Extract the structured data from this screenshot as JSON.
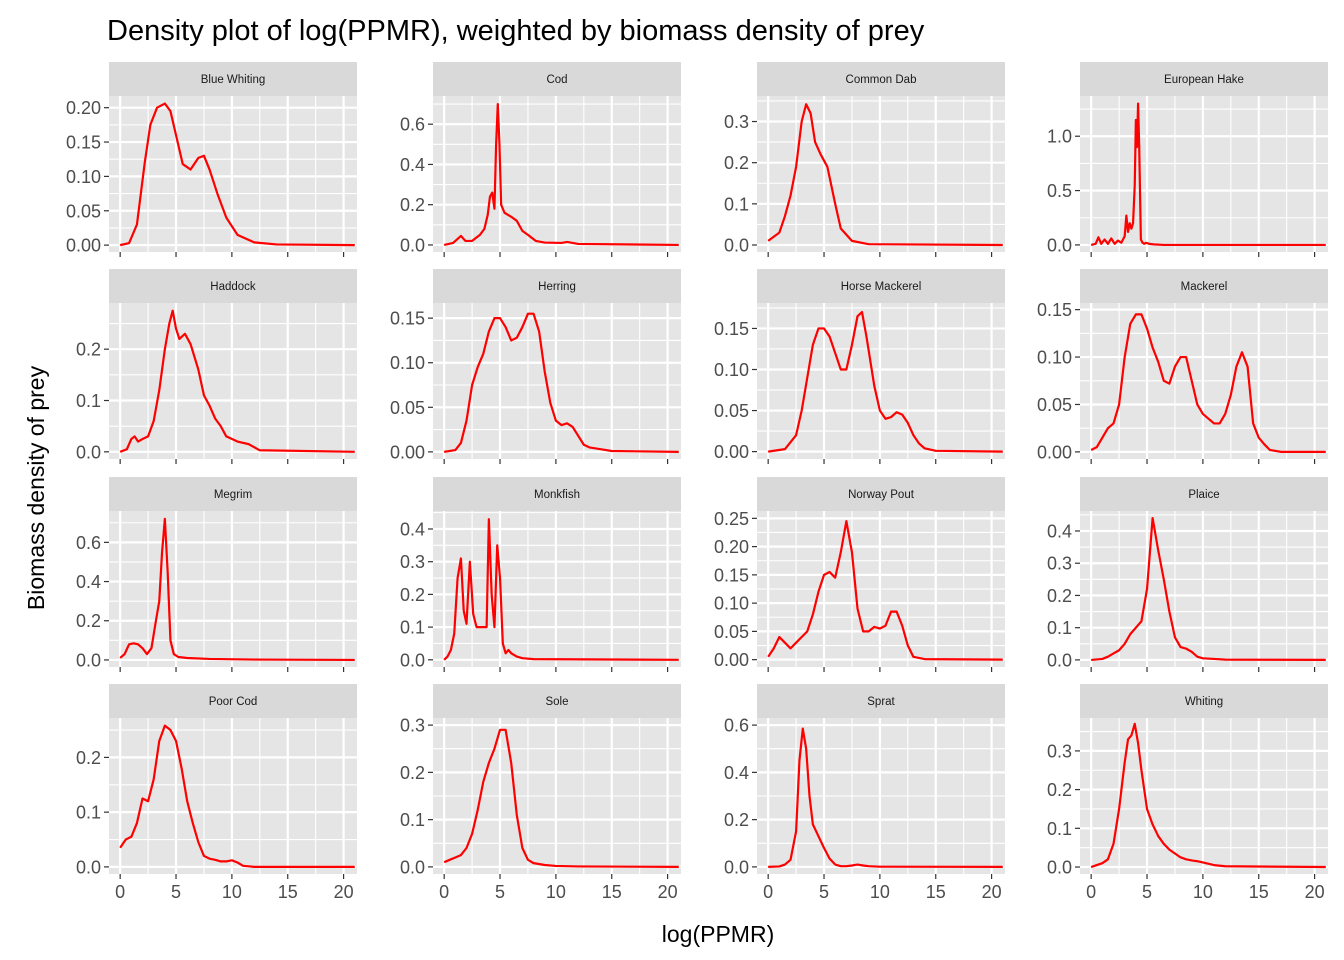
{
  "chart_data": {
    "type": "line",
    "title": "Density plot of log(PPMR), weighted by biomass density of prey",
    "xlabel": "log(PPMR)",
    "ylabel": "Biomass density of prey",
    "xlim": [
      -1,
      21.2
    ],
    "xticks": [
      0,
      5,
      10,
      15,
      20
    ],
    "grid": true,
    "line_color": "#ff0000",
    "panel_bg": "#e5e5e5",
    "strip_bg": "#d9d9d9",
    "panels": [
      {
        "name": "Blue Whiting",
        "ylim": [
          -0.01,
          0.217
        ],
        "yticks": [
          0,
          0.05,
          0.1,
          0.15,
          0.2
        ],
        "yticklabels": [
          "0.00",
          "0.05",
          "0.10",
          "0.15",
          "0.20"
        ],
        "x": [
          0,
          0.8,
          1.5,
          2.2,
          2.7,
          3.3,
          4,
          4.5,
          5,
          5.6,
          6.3,
          7,
          7.5,
          8,
          8.7,
          9.5,
          10.5,
          12,
          14,
          21
        ],
        "y": [
          0,
          0.003,
          0.03,
          0.12,
          0.175,
          0.2,
          0.206,
          0.195,
          0.16,
          0.118,
          0.11,
          0.127,
          0.13,
          0.11,
          0.075,
          0.04,
          0.015,
          0.004,
          0.001,
          0
        ]
      },
      {
        "name": "Cod",
        "ylim": [
          -0.035,
          0.74
        ],
        "yticks": [
          0,
          0.2,
          0.4,
          0.6
        ],
        "yticklabels": [
          "0.0",
          "0.2",
          "0.4",
          "0.6"
        ],
        "x": [
          0,
          0.8,
          1.2,
          1.5,
          1.9,
          2.5,
          3.2,
          3.6,
          3.9,
          4.1,
          4.3,
          4.5,
          4.65,
          4.8,
          4.95,
          5.1,
          5.4,
          6,
          6.5,
          7,
          7.5,
          8.2,
          9,
          10.5,
          11,
          12,
          21
        ],
        "y": [
          0,
          0.01,
          0.03,
          0.045,
          0.02,
          0.02,
          0.05,
          0.08,
          0.15,
          0.24,
          0.26,
          0.18,
          0.5,
          0.7,
          0.5,
          0.2,
          0.16,
          0.14,
          0.12,
          0.07,
          0.05,
          0.02,
          0.012,
          0.01,
          0.015,
          0.005,
          0
        ]
      },
      {
        "name": "Common Dab",
        "ylim": [
          -0.017,
          0.362
        ],
        "yticks": [
          0,
          0.1,
          0.2,
          0.3
        ],
        "yticklabels": [
          "0.0",
          "0.1",
          "0.2",
          "0.3"
        ],
        "x": [
          0,
          0.5,
          1,
          1.5,
          2,
          2.5,
          3,
          3.4,
          3.8,
          4.2,
          4.7,
          5.3,
          6,
          6.5,
          7.5,
          9,
          21
        ],
        "y": [
          0.01,
          0.02,
          0.03,
          0.07,
          0.12,
          0.19,
          0.3,
          0.342,
          0.32,
          0.25,
          0.22,
          0.19,
          0.1,
          0.04,
          0.01,
          0.002,
          0
        ]
      },
      {
        "name": "European Hake",
        "ylim": [
          -0.065,
          1.37
        ],
        "yticks": [
          0,
          0.5,
          1
        ],
        "yticklabels": [
          "0.0",
          "0.5",
          "1.0"
        ],
        "x": [
          0,
          0.4,
          0.65,
          0.9,
          1.2,
          1.5,
          1.8,
          2.1,
          2.4,
          2.7,
          3.0,
          3.15,
          3.3,
          3.45,
          3.6,
          3.75,
          3.9,
          4.0,
          4.1,
          4.2,
          4.3,
          4.45,
          4.6,
          4.75,
          4.9,
          5.2,
          5.6,
          6.5,
          21
        ],
        "y": [
          0,
          0.01,
          0.07,
          0.01,
          0.05,
          0.01,
          0.06,
          0.01,
          0.04,
          0.02,
          0.08,
          0.27,
          0.12,
          0.2,
          0.15,
          0.2,
          0.55,
          1.15,
          0.9,
          1.3,
          0.9,
          0.05,
          0.02,
          0.01,
          0.02,
          0.01,
          0.005,
          0,
          0
        ]
      },
      {
        "name": "Haddock",
        "ylim": [
          -0.014,
          0.29
        ],
        "yticks": [
          0,
          0.1,
          0.2
        ],
        "yticklabels": [
          "0.0",
          "0.1",
          "0.2"
        ],
        "x": [
          0,
          0.6,
          1,
          1.3,
          1.6,
          2,
          2.5,
          3,
          3.5,
          4,
          4.4,
          4.7,
          5,
          5.3,
          5.8,
          6.3,
          7,
          7.5,
          8,
          8.5,
          9,
          9.5,
          10.5,
          11.5,
          12.5,
          21
        ],
        "y": [
          0,
          0.005,
          0.025,
          0.03,
          0.02,
          0.025,
          0.03,
          0.06,
          0.12,
          0.2,
          0.25,
          0.275,
          0.24,
          0.22,
          0.23,
          0.21,
          0.16,
          0.11,
          0.09,
          0.065,
          0.05,
          0.03,
          0.02,
          0.015,
          0.003,
          0
        ]
      },
      {
        "name": "Herring",
        "ylim": [
          -0.008,
          0.167
        ],
        "yticks": [
          0,
          0.05,
          0.1,
          0.15
        ],
        "yticklabels": [
          "0.00",
          "0.05",
          "0.10",
          "0.15"
        ],
        "x": [
          0,
          1,
          1.5,
          2,
          2.5,
          3,
          3.5,
          4,
          4.5,
          5,
          5.5,
          6,
          6.5,
          7,
          7.5,
          8,
          8.5,
          9,
          9.5,
          10,
          10.5,
          11,
          11.5,
          12,
          12.5,
          13,
          14,
          15,
          21
        ],
        "y": [
          0,
          0.002,
          0.01,
          0.035,
          0.075,
          0.095,
          0.11,
          0.135,
          0.15,
          0.15,
          0.14,
          0.125,
          0.128,
          0.14,
          0.155,
          0.155,
          0.135,
          0.09,
          0.055,
          0.035,
          0.03,
          0.032,
          0.028,
          0.018,
          0.008,
          0.005,
          0.003,
          0.001,
          0
        ]
      },
      {
        "name": "Horse Mackerel",
        "ylim": [
          -0.009,
          0.181
        ],
        "yticks": [
          0,
          0.05,
          0.1,
          0.15
        ],
        "yticklabels": [
          "0.00",
          "0.05",
          "0.10",
          "0.15"
        ],
        "x": [
          0,
          1.5,
          2.5,
          3,
          3.5,
          4,
          4.5,
          5,
          5.5,
          6,
          6.5,
          7,
          7.5,
          8,
          8.4,
          8.8,
          9.5,
          10,
          10.5,
          11,
          11.5,
          12,
          12.5,
          13,
          13.5,
          14,
          15,
          21
        ],
        "y": [
          0,
          0.003,
          0.02,
          0.05,
          0.09,
          0.13,
          0.15,
          0.15,
          0.14,
          0.12,
          0.1,
          0.1,
          0.13,
          0.165,
          0.17,
          0.14,
          0.08,
          0.05,
          0.04,
          0.042,
          0.048,
          0.045,
          0.035,
          0.02,
          0.01,
          0.004,
          0.001,
          0
        ]
      },
      {
        "name": "Mackerel",
        "ylim": [
          -0.0075,
          0.157
        ],
        "yticks": [
          0,
          0.05,
          0.1,
          0.15
        ],
        "yticklabels": [
          "0.00",
          "0.05",
          "0.10",
          "0.15"
        ],
        "x": [
          0,
          0.5,
          1,
          1.5,
          2,
          2.5,
          3,
          3.5,
          4,
          4.5,
          5,
          5.5,
          6,
          6.5,
          7,
          7.5,
          8,
          8.5,
          9,
          9.5,
          10,
          10.5,
          11,
          11.5,
          12,
          12.5,
          13,
          13.5,
          14,
          14.5,
          15,
          15.5,
          16,
          17,
          21
        ],
        "y": [
          0.002,
          0.005,
          0.015,
          0.025,
          0.03,
          0.05,
          0.1,
          0.135,
          0.145,
          0.145,
          0.13,
          0.11,
          0.095,
          0.075,
          0.072,
          0.09,
          0.1,
          0.1,
          0.075,
          0.05,
          0.04,
          0.035,
          0.03,
          0.03,
          0.04,
          0.06,
          0.09,
          0.105,
          0.09,
          0.03,
          0.015,
          0.008,
          0.002,
          0,
          0
        ]
      },
      {
        "name": "Megrim",
        "ylim": [
          -0.036,
          0.76
        ],
        "yticks": [
          0,
          0.2,
          0.4,
          0.6
        ],
        "yticklabels": [
          "0.0",
          "0.2",
          "0.4",
          "0.6"
        ],
        "x": [
          0,
          0.4,
          0.8,
          1.2,
          1.6,
          2,
          2.4,
          2.8,
          3.2,
          3.5,
          3.75,
          4.0,
          4.25,
          4.5,
          4.8,
          5.2,
          6,
          8,
          12,
          21
        ],
        "y": [
          0.01,
          0.03,
          0.08,
          0.085,
          0.08,
          0.06,
          0.03,
          0.06,
          0.2,
          0.3,
          0.55,
          0.72,
          0.45,
          0.1,
          0.03,
          0.015,
          0.01,
          0.005,
          0.002,
          0
        ]
      },
      {
        "name": "Monkfish",
        "ylim": [
          -0.022,
          0.455
        ],
        "yticks": [
          0,
          0.1,
          0.2,
          0.3,
          0.4
        ],
        "yticklabels": [
          "0.0",
          "0.1",
          "0.2",
          "0.3",
          "0.4"
        ],
        "x": [
          0,
          0.3,
          0.6,
          0.9,
          1.2,
          1.5,
          1.75,
          2,
          2.3,
          2.6,
          2.9,
          3.2,
          3.5,
          3.8,
          4.0,
          4.25,
          4.5,
          4.75,
          5.0,
          5.25,
          5.5,
          5.75,
          6,
          6.5,
          7,
          8,
          21
        ],
        "y": [
          0,
          0.01,
          0.03,
          0.08,
          0.25,
          0.31,
          0.15,
          0.11,
          0.3,
          0.14,
          0.1,
          0.1,
          0.1,
          0.1,
          0.43,
          0.2,
          0.1,
          0.35,
          0.25,
          0.05,
          0.02,
          0.03,
          0.02,
          0.01,
          0.005,
          0.002,
          0
        ]
      },
      {
        "name": "Norway Pout",
        "ylim": [
          -0.013,
          0.263
        ],
        "yticks": [
          0,
          0.05,
          0.1,
          0.15,
          0.2,
          0.25
        ],
        "yticklabels": [
          "0.00",
          "0.05",
          "0.10",
          "0.15",
          "0.20",
          "0.25"
        ],
        "x": [
          0,
          0.5,
          1,
          1.5,
          2,
          2.5,
          3,
          3.5,
          4,
          4.5,
          5,
          5.5,
          6,
          6.5,
          7,
          7.5,
          8,
          8.5,
          9,
          9.5,
          10,
          10.5,
          11,
          11.5,
          12,
          12.5,
          13,
          14,
          21
        ],
        "y": [
          0.005,
          0.02,
          0.04,
          0.03,
          0.02,
          0.03,
          0.04,
          0.05,
          0.08,
          0.12,
          0.15,
          0.155,
          0.145,
          0.19,
          0.245,
          0.19,
          0.09,
          0.05,
          0.05,
          0.058,
          0.055,
          0.06,
          0.085,
          0.085,
          0.06,
          0.025,
          0.005,
          0.001,
          0
        ]
      },
      {
        "name": "Plaice",
        "ylim": [
          -0.022,
          0.462
        ],
        "yticks": [
          0,
          0.1,
          0.2,
          0.3,
          0.4
        ],
        "yticklabels": [
          "0.0",
          "0.1",
          "0.2",
          "0.3",
          "0.4"
        ],
        "x": [
          0,
          1,
          1.5,
          2,
          2.5,
          3,
          3.5,
          4,
          4.5,
          5,
          5.5,
          6,
          6.5,
          7,
          7.5,
          8,
          8.5,
          9,
          9.5,
          10,
          11,
          12,
          21
        ],
        "y": [
          0,
          0.003,
          0.01,
          0.02,
          0.03,
          0.05,
          0.08,
          0.1,
          0.12,
          0.22,
          0.44,
          0.34,
          0.25,
          0.15,
          0.07,
          0.04,
          0.035,
          0.025,
          0.01,
          0.005,
          0.003,
          0.001,
          0
        ]
      },
      {
        "name": "Poor Cod",
        "ylim": [
          -0.013,
          0.272
        ],
        "yticks": [
          0,
          0.1,
          0.2
        ],
        "yticklabels": [
          "0.0",
          "0.1",
          "0.2"
        ],
        "x": [
          0,
          0.5,
          1,
          1.5,
          2,
          2.5,
          3,
          3.5,
          4,
          4.5,
          5,
          5.5,
          6,
          6.5,
          7,
          7.5,
          8,
          8.5,
          9,
          9.5,
          10,
          10.5,
          11,
          11.5,
          12,
          21
        ],
        "y": [
          0.035,
          0.05,
          0.055,
          0.08,
          0.125,
          0.12,
          0.16,
          0.23,
          0.258,
          0.25,
          0.23,
          0.18,
          0.12,
          0.08,
          0.045,
          0.02,
          0.015,
          0.013,
          0.01,
          0.01,
          0.012,
          0.008,
          0.002,
          0.001,
          0,
          0
        ]
      },
      {
        "name": "Sole",
        "ylim": [
          -0.015,
          0.315
        ],
        "yticks": [
          0,
          0.1,
          0.2,
          0.3
        ],
        "yticklabels": [
          "0.0",
          "0.1",
          "0.2",
          "0.3"
        ],
        "x": [
          0,
          0.5,
          1,
          1.5,
          2,
          2.5,
          3,
          3.5,
          4,
          4.5,
          5,
          5.5,
          6,
          6.5,
          7,
          7.5,
          8,
          9,
          10,
          12,
          21
        ],
        "y": [
          0.01,
          0.015,
          0.02,
          0.025,
          0.04,
          0.07,
          0.12,
          0.18,
          0.22,
          0.25,
          0.29,
          0.29,
          0.22,
          0.11,
          0.04,
          0.015,
          0.008,
          0.004,
          0.002,
          0.001,
          0
        ]
      },
      {
        "name": "Sprat",
        "ylim": [
          -0.03,
          0.63
        ],
        "yticks": [
          0,
          0.2,
          0.4,
          0.6
        ],
        "yticklabels": [
          "0.0",
          "0.2",
          "0.4",
          "0.6"
        ],
        "x": [
          0,
          1,
          1.5,
          2,
          2.5,
          2.8,
          3.1,
          3.4,
          3.7,
          4,
          4.3,
          4.6,
          5,
          5.5,
          6,
          6.5,
          7,
          7.5,
          8,
          8.5,
          9,
          10,
          21
        ],
        "y": [
          0,
          0.002,
          0.01,
          0.03,
          0.15,
          0.45,
          0.585,
          0.5,
          0.3,
          0.18,
          0.15,
          0.12,
          0.08,
          0.035,
          0.01,
          0.003,
          0.003,
          0.006,
          0.01,
          0.006,
          0.003,
          0.001,
          0
        ]
      },
      {
        "name": "Whiting",
        "ylim": [
          -0.018,
          0.385
        ],
        "yticks": [
          0,
          0.1,
          0.2,
          0.3
        ],
        "yticklabels": [
          "0.0",
          "0.1",
          "0.2",
          "0.3"
        ],
        "x": [
          0,
          0.5,
          1,
          1.5,
          2,
          2.5,
          3,
          3.3,
          3.6,
          3.9,
          4.2,
          4.5,
          5,
          5.5,
          6,
          6.5,
          7,
          7.5,
          8,
          8.5,
          9,
          9.5,
          10,
          11,
          12,
          21
        ],
        "y": [
          0,
          0.005,
          0.01,
          0.02,
          0.06,
          0.15,
          0.27,
          0.33,
          0.34,
          0.37,
          0.32,
          0.25,
          0.15,
          0.11,
          0.08,
          0.06,
          0.045,
          0.035,
          0.025,
          0.02,
          0.017,
          0.015,
          0.012,
          0.005,
          0.002,
          0
        ]
      }
    ]
  }
}
